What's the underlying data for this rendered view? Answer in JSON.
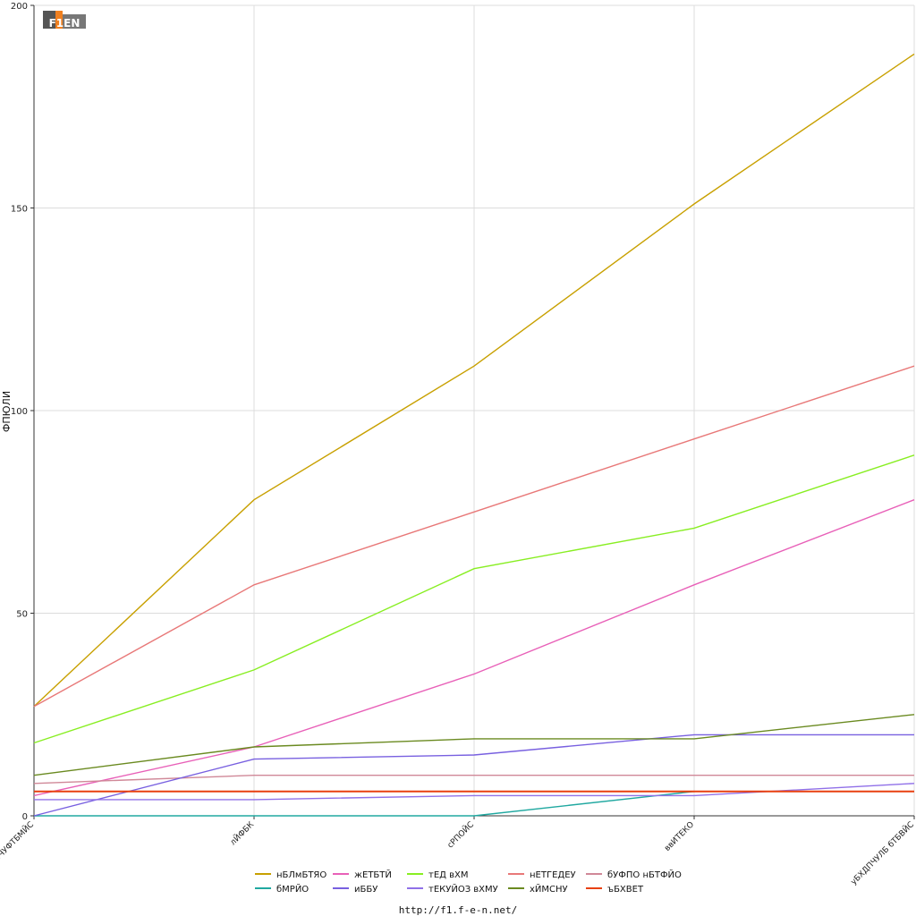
{
  "logo": {
    "text": "F1EN"
  },
  "footer": {
    "url": "http://f1.f-e-n.net/"
  },
  "chart_data": {
    "type": "line",
    "ylabel": "ФПЮЛИ",
    "xlabel": "",
    "ylim": [
      0,
      200
    ],
    "yticks": [
      0,
      50,
      100,
      150,
      200
    ],
    "grid": true,
    "legend_placement": "bottom-center",
    "categories": [
      "бЧУФТБМЙС",
      "лЙФБК",
      "сРПОЙС",
      "ввИТЕКО",
      "уБХДПЧУЛБ бТБВЙС"
    ],
    "series": [
      {
        "name": "нБЛмБТЯО",
        "color": "#c8a000",
        "values": [
          27,
          78,
          111,
          151,
          188
        ]
      },
      {
        "name": "жЕТБТЙ",
        "color": "#e860b8",
        "values": [
          5,
          17,
          35,
          57,
          78
        ]
      },
      {
        "name": "тЕД вХМ",
        "color": "#88ee22",
        "values": [
          18,
          36,
          61,
          71,
          89
        ]
      },
      {
        "name": "нЕТГЕДЕУ",
        "color": "#e87878",
        "values": [
          27,
          57,
          75,
          93,
          111
        ]
      },
      {
        "name": "бУФПО нБТФЙО",
        "color": "#d08898",
        "values": [
          8,
          10,
          10,
          10,
          10
        ]
      },
      {
        "name": "бМРЙО",
        "color": "#20a8a0",
        "values": [
          0,
          0,
          0,
          6,
          6
        ]
      },
      {
        "name": "иББУ",
        "color": "#7860e0",
        "values": [
          0,
          14,
          15,
          20,
          20
        ]
      },
      {
        "name": "тЕКУЙОЗ вХМУ",
        "color": "#9070e8",
        "values": [
          4,
          4,
          5,
          5,
          8
        ]
      },
      {
        "name": "хЙМСНУ",
        "color": "#6a8a20",
        "values": [
          10,
          17,
          19,
          19,
          25
        ]
      },
      {
        "name": "ъБХВЕТ",
        "color": "#e84010",
        "values": [
          6,
          6,
          6,
          6,
          6
        ]
      }
    ]
  }
}
